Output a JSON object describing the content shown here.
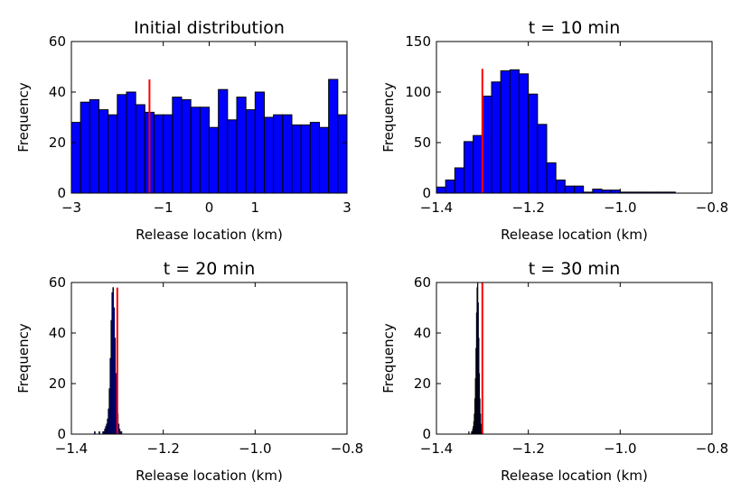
{
  "chart_data": [
    {
      "type": "bar",
      "title": "Initial distribution",
      "xlabel": "Release location (km)",
      "ylabel": "Frequency",
      "xlim": [
        -3,
        3
      ],
      "ylim": [
        0,
        60
      ],
      "xticks": [
        -3,
        -1,
        0,
        1,
        3
      ],
      "xtick_labels": [
        "−3",
        "−1",
        "0",
        "1",
        "3"
      ],
      "yticks": [
        0,
        20,
        40,
        60
      ],
      "ytick_labels": [
        "0",
        "20",
        "40",
        "60"
      ],
      "bin_start": -3,
      "bin_width": 0.2,
      "values": [
        28,
        36,
        37,
        33,
        31,
        39,
        40,
        35,
        32,
        31,
        31,
        38,
        37,
        34,
        34,
        26,
        41,
        29,
        38,
        33,
        40,
        30,
        31,
        31,
        27,
        27,
        28,
        26,
        45,
        31
      ],
      "bar_color": "#0000ff",
      "marker_x": -1.3,
      "marker_y": 45,
      "marker_color": "#ff0000"
    },
    {
      "type": "bar",
      "title": "t = 10 min",
      "xlabel": "Release location (km)",
      "ylabel": "Frequency",
      "xlim": [
        -1.4,
        -0.8
      ],
      "ylim": [
        0,
        150
      ],
      "xticks": [
        -1.4,
        -1.2,
        -1.0,
        -0.8
      ],
      "xtick_labels": [
        "−1.4",
        "−1.2",
        "−1.0",
        "−0.8"
      ],
      "yticks": [
        0,
        50,
        100,
        150
      ],
      "ytick_labels": [
        "0",
        "50",
        "100",
        "150"
      ],
      "bin_start": -1.4,
      "bin_width": 0.02,
      "values": [
        6,
        13,
        25,
        51,
        57,
        96,
        110,
        121,
        122,
        118,
        98,
        68,
        30,
        13,
        7,
        7,
        1,
        4,
        3,
        3,
        1,
        1,
        1,
        1,
        1,
        1,
        0,
        0,
        0,
        0
      ],
      "bar_color": "#0000ff",
      "marker_x": -1.3,
      "marker_y": 123,
      "marker_color": "#ff0000"
    },
    {
      "type": "bar",
      "title": "t = 20 min",
      "xlabel": "Release location (km)",
      "ylabel": "Frequency",
      "xlim": [
        -1.4,
        -0.8
      ],
      "ylim": [
        0,
        60
      ],
      "xticks": [
        -1.4,
        -1.2,
        -1.0,
        -0.8
      ],
      "xtick_labels": [
        "−1.4",
        "−1.2",
        "−1.0",
        "−0.8"
      ],
      "yticks": [
        0,
        20,
        40,
        60
      ],
      "ytick_labels": [
        "0",
        "20",
        "40",
        "60"
      ],
      "bin_start": -1.35,
      "bin_width": 0.002,
      "values": [
        1,
        0,
        0,
        0,
        0,
        1,
        0,
        0,
        0,
        1,
        1,
        2,
        3,
        4,
        6,
        10,
        18,
        30,
        45,
        56,
        58,
        50,
        38,
        24,
        14,
        8,
        4,
        2,
        1,
        1
      ],
      "bar_color": "#0000ff",
      "marker_x": -1.3,
      "marker_y": 58,
      "marker_color": "#ff0000"
    },
    {
      "type": "bar",
      "title": "t = 30 min",
      "xlabel": "Release location (km)",
      "ylabel": "Frequency",
      "xlim": [
        -1.4,
        -0.8
      ],
      "ylim": [
        0,
        60
      ],
      "xticks": [
        -1.4,
        -1.2,
        -1.0,
        -0.8
      ],
      "xtick_labels": [
        "−1.4",
        "−1.2",
        "−1.0",
        "−0.8"
      ],
      "yticks": [
        0,
        20,
        40,
        60
      ],
      "ytick_labels": [
        "0",
        "20",
        "40",
        "60"
      ],
      "bin_start": -1.33,
      "bin_width": 0.0012,
      "values": [
        1,
        0,
        0,
        0,
        0,
        1,
        1,
        2,
        3,
        5,
        8,
        14,
        22,
        34,
        48,
        58,
        60,
        52,
        38,
        24,
        14,
        8,
        4,
        2,
        1,
        1,
        0,
        0,
        0,
        0
      ],
      "bar_color": "#0000ff",
      "marker_x": -1.3,
      "marker_y": 60,
      "marker_color": "#ff0000"
    }
  ]
}
